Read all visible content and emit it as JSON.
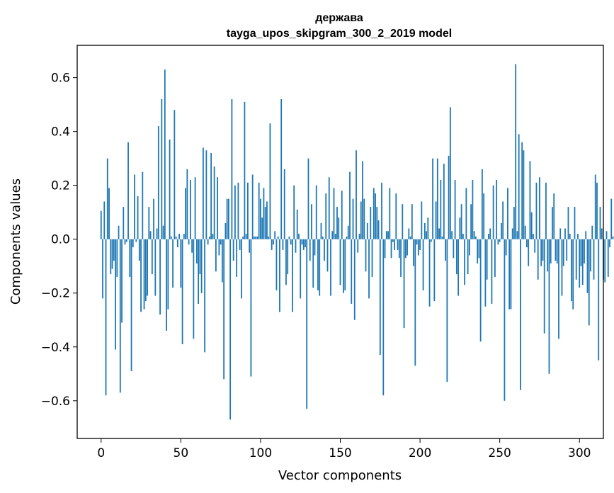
{
  "chart_data": {
    "type": "bar",
    "title": "держава",
    "subtitle": "tayga_upos_skipgram_300_2_2019 model",
    "xlabel": "Vector components",
    "ylabel": "Components values",
    "xlim": [
      -15,
      315
    ],
    "ylim": [
      -0.74,
      0.72
    ],
    "xticks": [
      0,
      50,
      100,
      150,
      200,
      250,
      300
    ],
    "yticks": [
      -0.6,
      -0.4,
      -0.2,
      0.0,
      0.2,
      0.4,
      0.6
    ],
    "ytick_labels": [
      "−0.6",
      "−0.4",
      "−0.2",
      "0.0",
      "0.2",
      "0.4",
      "0.6"
    ],
    "bar_color": "#1f77b4",
    "grid": false,
    "values": [
      0.105,
      -0.22,
      0.14,
      -0.58,
      0.3,
      0.19,
      -0.13,
      -0.11,
      -0.08,
      -0.41,
      -0.14,
      0.05,
      -0.57,
      -0.31,
      0.12,
      -0.02,
      -0.01,
      0.36,
      -0.14,
      -0.49,
      -0.03,
      0.24,
      -0.01,
      0.16,
      -0.08,
      -0.27,
      0.25,
      -0.26,
      -0.23,
      -0.21,
      0.12,
      0.03,
      -0.13,
      0.15,
      -0.21,
      0.04,
      0.42,
      -0.28,
      0.52,
      0.05,
      0.63,
      -0.34,
      -0.26,
      0.37,
      0.01,
      -0.18,
      0.48,
      0.01,
      -0.03,
      0.02,
      -0.18,
      -0.39,
      0.02,
      0.19,
      0.26,
      -0.02,
      0.22,
      -0.05,
      -0.37,
      0.23,
      -0.09,
      -0.24,
      -0.13,
      -0.2,
      0.34,
      -0.42,
      0.33,
      -0.02,
      0.01,
      0.32,
      0.02,
      0.27,
      -0.12,
      0.23,
      -0.06,
      -0.02,
      -0.16,
      -0.52,
      0.06,
      0.15,
      0.15,
      -0.67,
      0.52,
      -0.08,
      0.2,
      -0.14,
      0.21,
      -0.04,
      -0.22,
      0.01,
      0.51,
      0.02,
      0.21,
      -0.05,
      -0.51,
      0.24,
      0.01,
      0.01,
      0.01,
      0.21,
      0.15,
      0.08,
      0.19,
      0.12,
      0.14,
      0.01,
      0.43,
      -0.04,
      -0.02,
      0.03,
      -0.19,
      0.01,
      -0.27,
      0.52,
      -0.04,
      0.26,
      -0.17,
      -0.13,
      0.01,
      -0.02,
      -0.27,
      0.2,
      -0.05,
      0.11,
      0.02,
      -0.22,
      -0.02,
      -0.04,
      -0.03,
      -0.63,
      0.3,
      -0.08,
      0.13,
      -0.18,
      -0.06,
      0.2,
      -0.19,
      -0.21,
      0.06,
      0.01,
      -0.08,
      0.17,
      -0.12,
      0.23,
      -0.21,
      0.03,
      0.19,
      0.02,
      0.12,
      0.08,
      -0.17,
      0.18,
      -0.2,
      -0.19,
      0.01,
      0.05,
      0.25,
      -0.24,
      0.15,
      -0.3,
      0.33,
      -0.05,
      0.02,
      0.14,
      0.29,
      0.15,
      -0.12,
      0.06,
      -0.22,
      0.12,
      -0.14,
      0.19,
      0.17,
      0.12,
      0.07,
      -0.43,
      0.21,
      -0.58,
      -0.07,
      0.03,
      0.03,
      0.19,
      -0.07,
      -0.01,
      -0.04,
      0.17,
      -0.04,
      -0.07,
      -0.14,
      0.13,
      -0.33,
      -0.07,
      -0.06,
      0.04,
      0.01,
      0.13,
      -0.1,
      -0.47,
      -0.02,
      -0.06,
      -0.04,
      0.14,
      -0.19,
      0.06,
      0.03,
      0.08,
      -0.25,
      -0.01,
      0.3,
      -0.23,
      0.14,
      0.3,
      0.04,
      0.22,
      0.01,
      0.28,
      -0.08,
      -0.53,
      0.31,
      0.49,
      0.03,
      -0.07,
      0.22,
      -0.13,
      -0.21,
      0.08,
      0.13,
      0.02,
      -0.17,
      0.19,
      -0.13,
      -0.06,
      0.13,
      0.22,
      0.03,
      0.01,
      -0.09,
      -0.07,
      -0.38,
      0.26,
      0.17,
      -0.25,
      -0.15,
      0.02,
      0.04,
      -0.24,
      0.2,
      -0.14,
      0.22,
      -0.02,
      -0.01,
      0.06,
      0.14,
      -0.6,
      -0.06,
      0.19,
      -0.26,
      -0.26,
      0.04,
      0.12,
      0.65,
      0.03,
      0.39,
      -0.56,
      0.36,
      0.33,
      0.05,
      -0.03,
      -0.1,
      0.29,
      0.1,
      0.02,
      -0.05,
      0.21,
      -0.15,
      0.23,
      -0.1,
      -0.08,
      -0.35,
      0.21,
      -0.12,
      -0.5,
      -0.09,
      0.12,
      0.17,
      -0.08,
      -0.09,
      -0.37,
      0.04,
      -0.21,
      -0.1,
      0.04,
      -0.08,
      0.12,
      0.02,
      -0.23,
      -0.26,
      0.12,
      -0.15,
      0.02,
      -0.18,
      -0.1,
      -0.17,
      -0.09,
      0.03,
      -0.2,
      -0.32,
      -0.12,
      0.05,
      -0.15,
      0.24,
      0.21,
      -0.45,
      0.12,
      0.04,
      -0.15,
      -0.16,
      0.03,
      -0.14,
      -0.03,
      0.15,
      0.01
    ]
  }
}
